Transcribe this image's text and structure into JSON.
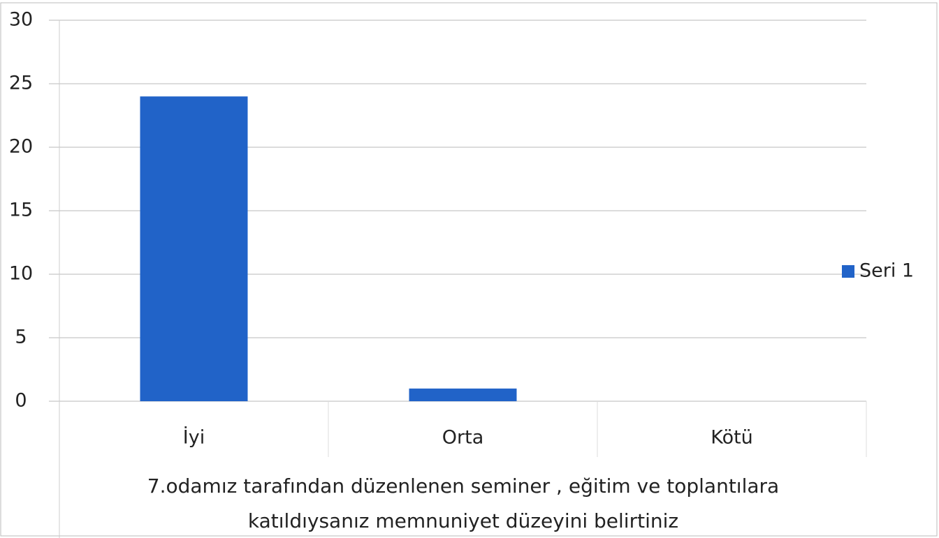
{
  "chart_data": {
    "type": "bar",
    "xlabel": "7.odamız tarafından düzenlenen seminer , eğitim ve toplantılara katıldıysanız memnuniyet düzeyini belirtiniz",
    "categories": [
      "İyi",
      "Orta",
      "Kötü"
    ],
    "series": [
      {
        "name": "Seri 1",
        "color": "#2163c8",
        "values": [
          24,
          1,
          0
        ]
      }
    ],
    "ylim": [
      0,
      30
    ],
    "yticks": [
      0,
      5,
      10,
      15,
      20,
      25,
      30
    ],
    "grid": true,
    "legend": "right"
  }
}
